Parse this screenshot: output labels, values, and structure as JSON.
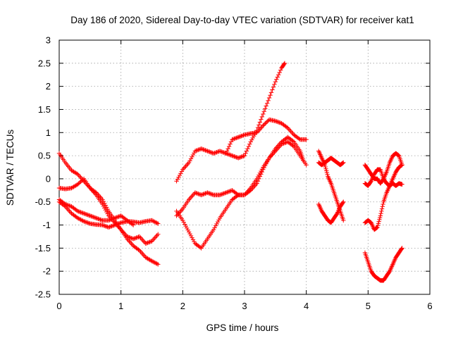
{
  "chart_data": {
    "type": "scatter",
    "title": "Day 186 of 2020, Sidereal Day-to-day VTEC variation (SDTVAR) for receiver kat1",
    "xlabel": "GPS time / hours",
    "ylabel": "SDTVAR / TECUs",
    "xlim": [
      0,
      6
    ],
    "ylim": [
      -2.5,
      3
    ],
    "xticks": [
      0,
      1,
      2,
      3,
      4,
      5,
      6
    ],
    "yticks": [
      -2.5,
      -2,
      -1.5,
      -1,
      -0.5,
      0,
      0.5,
      1,
      1.5,
      2,
      2.5,
      3
    ],
    "grid": true,
    "marker": "+",
    "color": "#ff0000",
    "series": [
      {
        "x": [
          0.0,
          0.1,
          0.2,
          0.3,
          0.4,
          0.5,
          0.6,
          0.7,
          0.8,
          0.9,
          1.0,
          1.1,
          1.2,
          1.3,
          1.4,
          1.5,
          1.6
        ],
        "y": [
          0.55,
          0.35,
          0.18,
          0.1,
          -0.05,
          -0.2,
          -0.35,
          -0.55,
          -0.8,
          -0.95,
          -1.1,
          -1.3,
          -1.45,
          -1.55,
          -1.7,
          -1.78,
          -1.85
        ]
      },
      {
        "x": [
          0.0,
          0.1,
          0.2,
          0.3,
          0.4,
          0.5,
          0.6,
          0.7,
          0.8,
          0.9,
          1.0,
          1.1,
          1.2,
          1.3,
          1.4,
          1.5,
          1.6
        ],
        "y": [
          -0.2,
          -0.22,
          -0.2,
          -0.12,
          0.0,
          -0.2,
          -0.3,
          -0.45,
          -0.7,
          -0.9,
          -1.1,
          -1.25,
          -1.3,
          -1.25,
          -1.4,
          -1.35,
          -1.2
        ]
      },
      {
        "x": [
          0.0,
          0.1,
          0.2,
          0.3,
          0.4,
          0.5,
          0.6,
          0.7,
          0.8,
          0.9,
          1.0,
          1.1,
          1.2,
          1.3,
          1.4,
          1.5,
          1.6
        ],
        "y": [
          -0.5,
          -0.6,
          -0.75,
          -0.85,
          -0.92,
          -0.97,
          -0.99,
          -1.0,
          -1.05,
          -1.0,
          -0.95,
          -0.92,
          -0.93,
          -0.95,
          -0.92,
          -0.9,
          -0.97
        ]
      },
      {
        "x": [
          0.0,
          0.1,
          0.2,
          0.3,
          0.4,
          0.5,
          0.6,
          0.7,
          0.8,
          0.9,
          1.0,
          1.1,
          1.2
        ],
        "y": [
          -0.45,
          -0.55,
          -0.6,
          -0.7,
          -0.75,
          -0.8,
          -0.85,
          -0.9,
          -0.9,
          -0.85,
          -0.8,
          -0.9,
          -1.0
        ]
      },
      {
        "x": [
          1.9,
          2.0,
          2.1,
          2.2,
          2.3,
          2.4,
          2.5,
          2.6,
          2.7,
          2.8,
          2.9,
          3.0,
          3.1,
          3.2,
          3.3,
          3.4,
          3.5,
          3.6,
          3.65
        ],
        "y": [
          -0.05,
          0.2,
          0.35,
          0.6,
          0.65,
          0.6,
          0.55,
          0.6,
          0.55,
          0.5,
          0.45,
          0.5,
          0.8,
          1.05,
          1.4,
          1.75,
          2.1,
          2.4,
          2.5
        ]
      },
      {
        "x": [
          1.9,
          2.0,
          2.1,
          2.2,
          2.3,
          2.4,
          2.5,
          2.6,
          2.7,
          2.8,
          2.9,
          3.0,
          3.1,
          3.2,
          3.3,
          3.4,
          3.5,
          3.6,
          3.7,
          3.8,
          3.9,
          3.95
        ],
        "y": [
          -0.8,
          -0.65,
          -0.45,
          -0.3,
          -0.35,
          -0.3,
          -0.35,
          -0.35,
          -0.3,
          -0.25,
          -0.35,
          -0.35,
          -0.25,
          -0.1,
          0.2,
          0.45,
          0.65,
          0.8,
          0.9,
          0.8,
          0.6,
          0.4
        ]
      },
      {
        "x": [
          1.9,
          2.0,
          2.1,
          2.2,
          2.3,
          2.4,
          2.5,
          2.6,
          2.7,
          2.8,
          2.9,
          3.0,
          3.1,
          3.2,
          3.3,
          3.4,
          3.5,
          3.6,
          3.7,
          3.8,
          3.9,
          4.0
        ],
        "y": [
          -0.7,
          -0.9,
          -1.15,
          -1.4,
          -1.5,
          -1.3,
          -1.1,
          -0.85,
          -0.65,
          -0.45,
          -0.35,
          -0.35,
          -0.2,
          0.0,
          0.25,
          0.45,
          0.6,
          0.75,
          0.8,
          0.7,
          0.5,
          0.3
        ]
      },
      {
        "x": [
          2.7,
          2.8,
          2.9,
          3.0,
          3.1,
          3.2,
          3.3,
          3.4,
          3.5,
          3.6,
          3.7,
          3.8,
          3.9,
          4.0
        ],
        "y": [
          0.55,
          0.85,
          0.9,
          0.95,
          0.98,
          1.0,
          1.15,
          1.28,
          1.25,
          1.2,
          1.1,
          0.95,
          0.85,
          0.85
        ]
      },
      {
        "x": [
          4.2,
          4.25,
          4.3,
          4.35,
          4.4,
          4.45,
          4.5,
          4.55,
          4.6
        ],
        "y": [
          0.6,
          0.45,
          0.3,
          0.05,
          -0.1,
          -0.3,
          -0.5,
          -0.7,
          -0.9
        ]
      },
      {
        "x": [
          4.2,
          4.25,
          4.3,
          4.35,
          4.4,
          4.45,
          4.5,
          4.55,
          4.6
        ],
        "y": [
          0.35,
          0.3,
          0.35,
          0.4,
          0.45,
          0.4,
          0.35,
          0.3,
          0.35
        ]
      },
      {
        "x": [
          4.2,
          4.25,
          4.3,
          4.35,
          4.4,
          4.45,
          4.5,
          4.55,
          4.6
        ],
        "y": [
          -0.55,
          -0.7,
          -0.8,
          -0.9,
          -0.95,
          -0.85,
          -0.75,
          -0.6,
          -0.5
        ]
      },
      {
        "x": [
          4.95,
          5.0,
          5.05,
          5.1,
          5.15,
          5.2,
          5.25,
          5.3,
          5.35,
          5.4,
          5.45,
          5.5,
          5.55
        ],
        "y": [
          0.3,
          0.2,
          0.1,
          0.0,
          0.0,
          -0.1,
          0.0,
          0.15,
          0.35,
          0.5,
          0.55,
          0.5,
          0.3
        ]
      },
      {
        "x": [
          4.95,
          5.0,
          5.05,
          5.1,
          5.15,
          5.2,
          5.25,
          5.3,
          5.35,
          5.4,
          5.45,
          5.5,
          5.55
        ],
        "y": [
          -0.1,
          -0.15,
          -0.05,
          0.1,
          0.2,
          0.2,
          0.0,
          -0.1,
          -0.15,
          -0.1,
          -0.15,
          -0.1,
          -0.12
        ]
      },
      {
        "x": [
          4.95,
          5.0,
          5.05,
          5.1,
          5.15,
          5.2,
          5.25,
          5.3,
          5.35,
          5.4,
          5.45,
          5.5,
          5.55
        ],
        "y": [
          -0.95,
          -0.9,
          -0.95,
          -1.1,
          -1.05,
          -0.8,
          -0.5,
          -0.3,
          -0.15,
          0.0,
          0.15,
          0.25,
          0.3
        ]
      },
      {
        "x": [
          4.95,
          5.0,
          5.05,
          5.1,
          5.15,
          5.2,
          5.25,
          5.3,
          5.35,
          5.4,
          5.45,
          5.5,
          5.55
        ],
        "y": [
          -1.6,
          -1.8,
          -2.0,
          -2.1,
          -2.15,
          -2.2,
          -2.2,
          -2.1,
          -2.0,
          -1.85,
          -1.7,
          -1.6,
          -1.5
        ]
      }
    ]
  }
}
